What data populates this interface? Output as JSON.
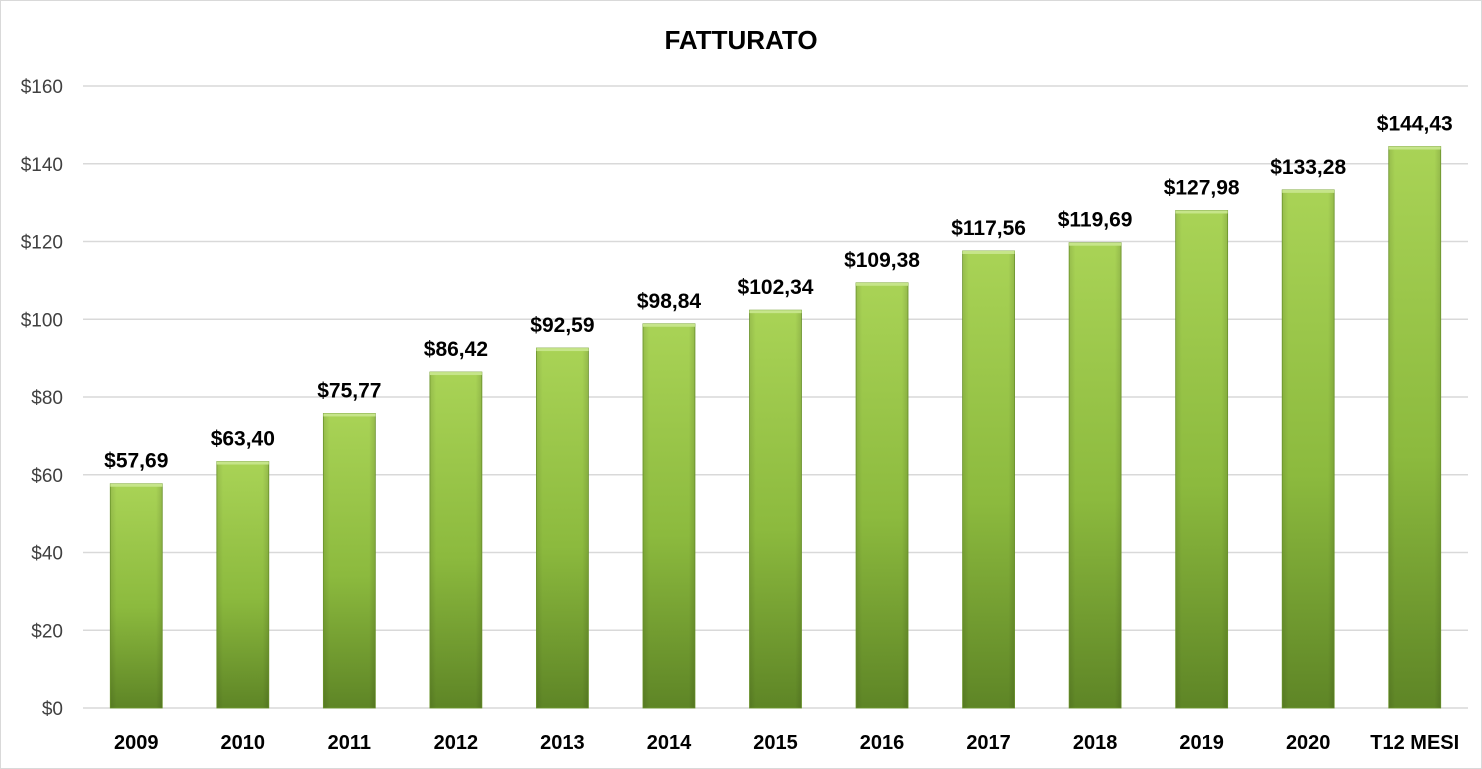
{
  "chart_data": {
    "type": "bar",
    "title": "FATTURATO",
    "xlabel": "",
    "ylabel": "",
    "categories": [
      "2009",
      "2010",
      "2011",
      "2012",
      "2013",
      "2014",
      "2015",
      "2016",
      "2017",
      "2018",
      "2019",
      "2020",
      "T12 MESI"
    ],
    "values": [
      57.69,
      63.4,
      75.77,
      86.42,
      92.59,
      98.84,
      102.34,
      109.38,
      117.56,
      119.69,
      127.98,
      133.28,
      144.43
    ],
    "data_labels": [
      "$57,69",
      "$63,40",
      "$75,77",
      "$86,42",
      "$92,59",
      "$98,84",
      "$102,34",
      "$109,38",
      "$117,56",
      "$119,69",
      "$127,98",
      "$133,28",
      "$144,43"
    ],
    "ylim": [
      0,
      160
    ],
    "y_ticks": [
      0,
      20,
      40,
      60,
      80,
      100,
      120,
      140,
      160
    ],
    "y_tick_labels": [
      "$0",
      "$20",
      "$40",
      "$60",
      "$80",
      "$100",
      "$120",
      "$140",
      "$160"
    ],
    "grid": true,
    "legend": "none",
    "colors": {
      "bar_light": "#a9d356",
      "bar_mid": "#8cba3e",
      "bar_dark": "#5e8526",
      "bar_top": "#c6e58a",
      "gridline": "#d9d9d9"
    }
  }
}
